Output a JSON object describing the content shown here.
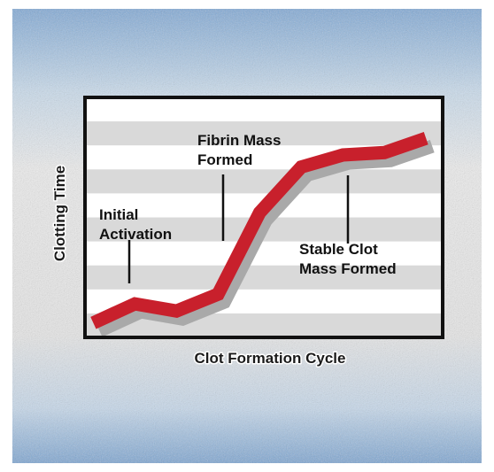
{
  "chart_data": {
    "type": "line",
    "title": "",
    "xlabel": "Clot Formation Cycle",
    "ylabel": "Clotting Time",
    "x": [
      0,
      1,
      2,
      3,
      4,
      5,
      6,
      7,
      8
    ],
    "series": [
      {
        "values": [
          0.6,
          1.4,
          1.1,
          1.8,
          5.2,
          7.1,
          7.6,
          7.7,
          8.3
        ]
      }
    ],
    "xlim": [
      -0.2,
      8.4
    ],
    "ylim": [
      0,
      10
    ],
    "grid": true,
    "legend": "none",
    "annotations": [
      {
        "lines": [
          "Initial",
          "Activation"
        ]
      },
      {
        "lines": [
          "Fibrin Mass",
          "Formed"
        ]
      },
      {
        "lines": [
          "Stable Clot",
          "Mass Formed"
        ]
      }
    ],
    "colors": {
      "line": "#c8202c",
      "shadow": "#a9a9a9",
      "stripe": "#d9d9d9",
      "frame": "#111111"
    }
  }
}
